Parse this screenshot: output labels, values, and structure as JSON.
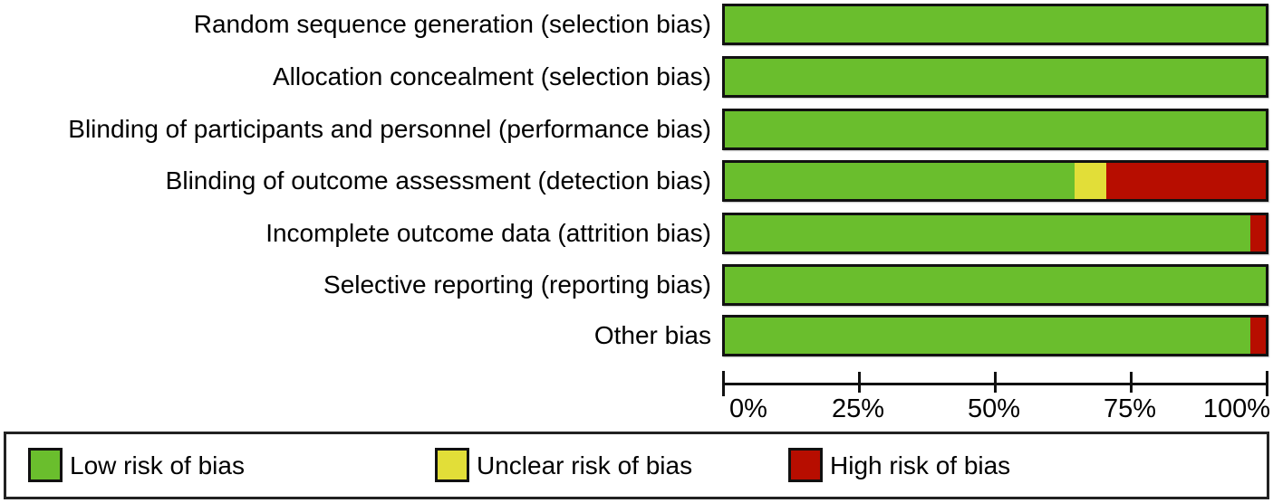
{
  "chart_data": {
    "type": "bar",
    "orientation": "horizontal",
    "stacked": true,
    "unit": "percent",
    "title": "",
    "xlabel": "",
    "ylabel": "",
    "xlim": [
      0,
      100
    ],
    "grid": false,
    "legend_position": "bottom",
    "categories": [
      "Random sequence generation (selection bias)",
      "Allocation concealment (selection bias)",
      "Blinding of participants and personnel (performance bias)",
      "Blinding of outcome assessment (detection bias)",
      "Incomplete outcome data (attrition bias)",
      "Selective reporting (reporting bias)",
      "Other bias"
    ],
    "series": [
      {
        "name": "Low risk of bias",
        "color": "#6abe2d",
        "values": [
          100,
          100,
          100,
          64.7,
          97.1,
          100,
          97.1
        ]
      },
      {
        "name": "Unclear risk of bias",
        "color": "#e2de38",
        "values": [
          0,
          0,
          0,
          5.9,
          0,
          0,
          0
        ]
      },
      {
        "name": "High risk of bias",
        "color": "#b70d00",
        "values": [
          0,
          0,
          0,
          29.4,
          2.9,
          0,
          2.9
        ]
      }
    ],
    "x_ticks": [
      {
        "label": "0%",
        "value": 0
      },
      {
        "label": "25%",
        "value": 25
      },
      {
        "label": "50%",
        "value": 50
      },
      {
        "label": "75%",
        "value": 75
      },
      {
        "label": "100%",
        "value": 100
      }
    ],
    "legend": [
      {
        "label": "Low risk of bias",
        "color": "#6abe2d"
      },
      {
        "label": "Unclear risk of bias",
        "color": "#e2de38"
      },
      {
        "label": "High risk of bias",
        "color": "#b70d00"
      }
    ]
  },
  "colors": {
    "low_risk": "#6abe2d",
    "unclear_risk": "#e2de38",
    "high_risk": "#b70d00",
    "bar_border": "#111111",
    "text": "#000000",
    "background": "#ffffff"
  }
}
